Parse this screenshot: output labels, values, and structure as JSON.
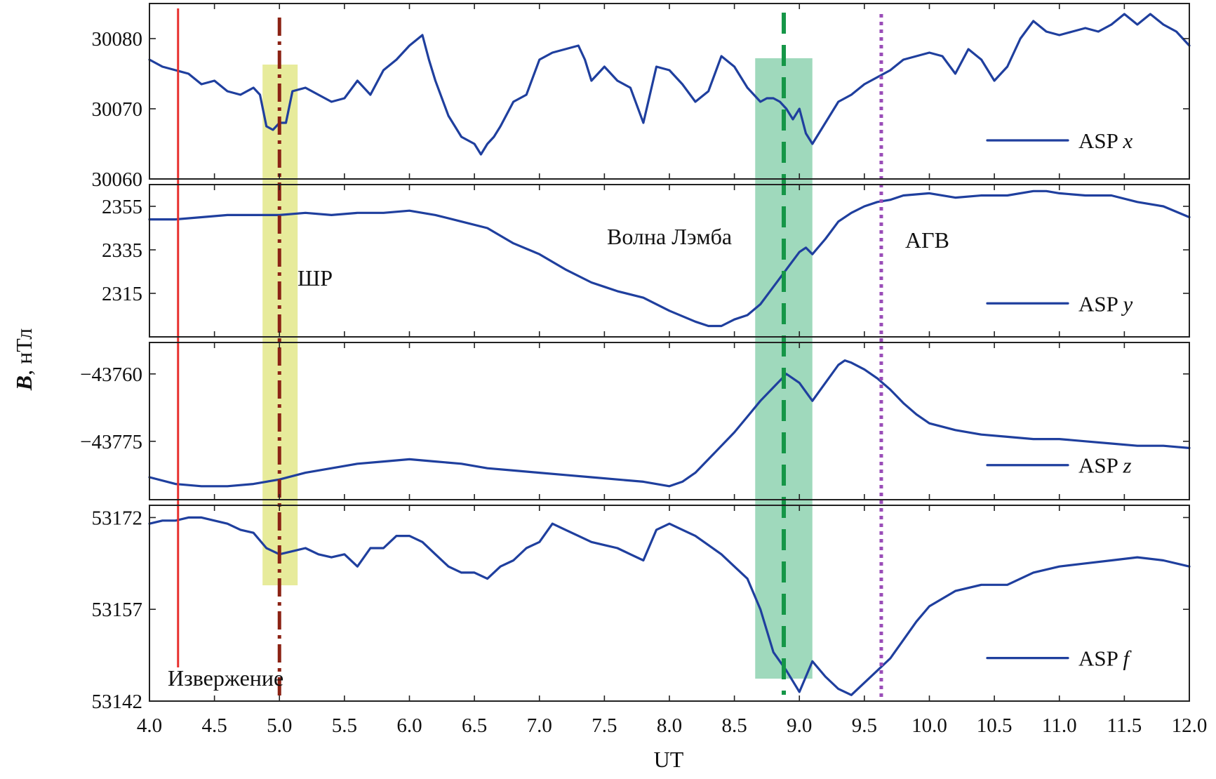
{
  "chart_data": {
    "type": "line",
    "xlabel": "UT",
    "ylabel_main": "B",
    "ylabel_unit": ", нТл",
    "xlim": [
      4.0,
      12.0
    ],
    "xticks": [
      "4.0",
      "4.5",
      "5.0",
      "5.5",
      "6.0",
      "6.5",
      "7.0",
      "7.5",
      "8.0",
      "8.5",
      "9.0",
      "9.5",
      "10.0",
      "10.5",
      "11.0",
      "11.5",
      "12.0"
    ],
    "events": [
      {
        "name": "eruption",
        "label": "Извержение",
        "x": 4.22,
        "color": "#e8302e",
        "style": "solid"
      },
      {
        "name": "shock-wave",
        "label": "ШР",
        "x": 5.0,
        "color": "#8b2214",
        "style": "dashdot",
        "band": [
          4.87,
          5.14
        ],
        "band_color": "#e3e88a"
      },
      {
        "name": "lamb-wave",
        "label": "Волна Лэмба",
        "x": 8.88,
        "color": "#159647",
        "style": "dashed",
        "band": [
          8.66,
          9.1
        ],
        "band_color": "#8ed2b0"
      },
      {
        "name": "agw",
        "label": "АГВ",
        "x": 9.63,
        "color": "#9a4db8",
        "style": "dotted"
      }
    ],
    "panels": [
      {
        "name": "panel-x",
        "legend_prefix": "ASP ",
        "legend_comp": "x",
        "ylim": [
          30060,
          30085
        ],
        "yticks": [
          "30060",
          "30070",
          "30080"
        ],
        "ytick_values": [
          30060,
          30070,
          30080
        ],
        "x": [
          4.0,
          4.1,
          4.2,
          4.3,
          4.4,
          4.5,
          4.6,
          4.7,
          4.8,
          4.85,
          4.9,
          4.95,
          5.0,
          5.05,
          5.1,
          5.2,
          5.3,
          5.4,
          5.5,
          5.6,
          5.7,
          5.8,
          5.9,
          6.0,
          6.1,
          6.15,
          6.2,
          6.3,
          6.4,
          6.5,
          6.55,
          6.6,
          6.65,
          6.7,
          6.8,
          6.9,
          7.0,
          7.1,
          7.2,
          7.3,
          7.35,
          7.4,
          7.5,
          7.6,
          7.7,
          7.8,
          7.9,
          8.0,
          8.1,
          8.2,
          8.3,
          8.4,
          8.5,
          8.6,
          8.7,
          8.75,
          8.8,
          8.85,
          8.9,
          8.95,
          9.0,
          9.05,
          9.1,
          9.2,
          9.3,
          9.4,
          9.5,
          9.6,
          9.7,
          9.8,
          9.9,
          10.0,
          10.1,
          10.2,
          10.3,
          10.4,
          10.5,
          10.6,
          10.7,
          10.8,
          10.9,
          11.0,
          11.1,
          11.2,
          11.3,
          11.4,
          11.5,
          11.6,
          11.7,
          11.8,
          11.9,
          12.0
        ],
        "values": [
          30077,
          30076,
          30075.5,
          30075,
          30073.5,
          30074,
          30072.5,
          30072,
          30073,
          30072,
          30067.5,
          30067,
          30068,
          30068,
          30072.5,
          30073,
          30072,
          30071,
          30071.5,
          30074,
          30072,
          30075.5,
          30077,
          30079,
          30080.5,
          30077,
          30074,
          30069,
          30066,
          30065,
          30063.5,
          30065,
          30066,
          30067.5,
          30071,
          30072,
          30077,
          30078,
          30078.5,
          30079,
          30077,
          30074,
          30076,
          30074,
          30073,
          30068,
          30076,
          30075.5,
          30073.5,
          30071,
          30072.5,
          30077.5,
          30076,
          30073,
          30071,
          30071.5,
          30071.5,
          30071,
          30070,
          30068.5,
          30070,
          30066.5,
          30065,
          30068,
          30071,
          30072,
          30073.5,
          30074.5,
          30075.5,
          30077,
          30077.5,
          30078,
          30077.5,
          30075,
          30078.5,
          30077,
          30074,
          30076,
          30080,
          30082.5,
          30081,
          30080.5,
          30081,
          30081.5,
          30081,
          30082,
          30083.5,
          30082,
          30083.5,
          30082,
          30081,
          30079
        ]
      },
      {
        "name": "panel-y",
        "legend_prefix": "ASP ",
        "legend_comp": "y",
        "ylim": [
          2295,
          2365
        ],
        "yticks": [
          "2315",
          "2335",
          "2355"
        ],
        "ytick_values": [
          2315,
          2335,
          2355
        ],
        "x": [
          4.0,
          4.2,
          4.4,
          4.6,
          4.8,
          5.0,
          5.2,
          5.4,
          5.6,
          5.8,
          6.0,
          6.2,
          6.4,
          6.6,
          6.8,
          7.0,
          7.2,
          7.4,
          7.5,
          7.6,
          7.8,
          8.0,
          8.2,
          8.3,
          8.4,
          8.5,
          8.6,
          8.7,
          8.8,
          8.9,
          9.0,
          9.05,
          9.1,
          9.2,
          9.3,
          9.4,
          9.5,
          9.6,
          9.7,
          9.8,
          10.0,
          10.2,
          10.4,
          10.6,
          10.8,
          10.9,
          11.0,
          11.2,
          11.4,
          11.6,
          11.8,
          12.0
        ],
        "values": [
          2349,
          2349,
          2350,
          2351,
          2351,
          2351,
          2352,
          2351,
          2352,
          2352,
          2353,
          2351,
          2348,
          2345,
          2338,
          2333,
          2326,
          2320,
          2318,
          2316,
          2313,
          2307,
          2302,
          2300,
          2300,
          2303,
          2305,
          2310,
          2318,
          2326,
          2334,
          2336,
          2333,
          2340,
          2348,
          2352,
          2355,
          2357,
          2358,
          2360,
          2361,
          2359,
          2360,
          2360,
          2362,
          2362,
          2361,
          2360,
          2360,
          2357,
          2355,
          2350
        ]
      },
      {
        "name": "panel-z",
        "legend_prefix": "ASP ",
        "legend_comp": "z",
        "ylim": [
          -43788,
          -43753
        ],
        "yticks": [
          "−43775",
          "−43760"
        ],
        "ytick_values": [
          -43775,
          -43760
        ],
        "x": [
          4.0,
          4.2,
          4.4,
          4.6,
          4.8,
          5.0,
          5.2,
          5.4,
          5.6,
          5.8,
          6.0,
          6.2,
          6.4,
          6.6,
          6.8,
          7.0,
          7.2,
          7.4,
          7.6,
          7.8,
          8.0,
          8.1,
          8.2,
          8.3,
          8.4,
          8.5,
          8.6,
          8.7,
          8.8,
          8.9,
          9.0,
          9.1,
          9.2,
          9.3,
          9.35,
          9.4,
          9.5,
          9.6,
          9.7,
          9.8,
          9.9,
          10.0,
          10.2,
          10.4,
          10.6,
          10.8,
          11.0,
          11.2,
          11.4,
          11.6,
          11.8,
          12.0
        ],
        "values": [
          -43783,
          -43784.5,
          -43785,
          -43785,
          -43784.5,
          -43783.5,
          -43782,
          -43781,
          -43780,
          -43779.5,
          -43779,
          -43779.5,
          -43780,
          -43781,
          -43781.5,
          -43782,
          -43782.5,
          -43783,
          -43783.5,
          -43784,
          -43785,
          -43784,
          -43782,
          -43779,
          -43776,
          -43773,
          -43769.5,
          -43766,
          -43763,
          -43760,
          -43762,
          -43766,
          -43762,
          -43758,
          -43757,
          -43757.5,
          -43759,
          -43761,
          -43763.5,
          -43766.5,
          -43769,
          -43771,
          -43772.5,
          -43773.5,
          -43774,
          -43774.5,
          -43774.5,
          -43775,
          -43775.5,
          -43776,
          -43776,
          -43776.5
        ]
      },
      {
        "name": "panel-f",
        "legend_prefix": "ASP ",
        "legend_comp": "f",
        "ylim": [
          53142,
          53174
        ],
        "yticks": [
          "53142",
          "53157",
          "53172"
        ],
        "ytick_values": [
          53142,
          53157,
          53172
        ],
        "x": [
          4.0,
          4.1,
          4.2,
          4.3,
          4.4,
          4.5,
          4.6,
          4.7,
          4.8,
          4.9,
          5.0,
          5.1,
          5.2,
          5.3,
          5.4,
          5.5,
          5.6,
          5.7,
          5.8,
          5.9,
          6.0,
          6.1,
          6.2,
          6.3,
          6.4,
          6.5,
          6.6,
          6.7,
          6.8,
          6.9,
          7.0,
          7.1,
          7.2,
          7.3,
          7.4,
          7.5,
          7.6,
          7.7,
          7.8,
          7.9,
          8.0,
          8.1,
          8.2,
          8.3,
          8.4,
          8.5,
          8.6,
          8.7,
          8.8,
          8.9,
          9.0,
          9.1,
          9.2,
          9.3,
          9.4,
          9.5,
          9.6,
          9.7,
          9.8,
          9.9,
          10.0,
          10.2,
          10.4,
          10.6,
          10.8,
          11.0,
          11.2,
          11.4,
          11.6,
          11.8,
          12.0
        ],
        "values": [
          53171,
          53171.5,
          53171.5,
          53172,
          53172,
          53171.5,
          53171,
          53170,
          53169.5,
          53167,
          53166,
          53166.5,
          53167,
          53166,
          53165.5,
          53166,
          53164,
          53167,
          53167,
          53169,
          53169,
          53168,
          53166,
          53164,
          53163,
          53163,
          53162,
          53164,
          53165,
          53167,
          53168,
          53171,
          53170,
          53169,
          53168,
          53167.5,
          53167,
          53166,
          53165,
          53170,
          53171,
          53170,
          53169,
          53167.5,
          53166,
          53164,
          53162,
          53157,
          53150,
          53147,
          53143.5,
          53148.5,
          53146,
          53144,
          53143,
          53145,
          53147,
          53149,
          53152,
          53155,
          53157.5,
          53160,
          53161,
          53161,
          53163,
          53164,
          53164.5,
          53165,
          53165.5,
          53165,
          53164
        ]
      }
    ]
  }
}
